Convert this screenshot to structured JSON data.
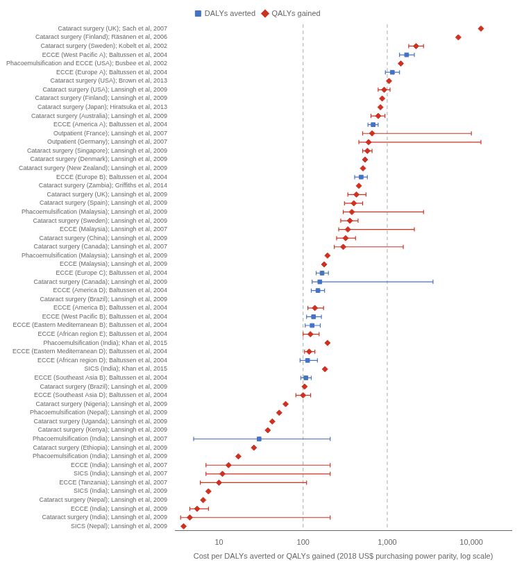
{
  "chart_data": {
    "type": "scatter",
    "orientation": "horizontal",
    "xlabel": "Cost per DALYs averted or QALYs gained (2018 US$ purchasing power parity, log scale)",
    "categories": [
      "Cataract surgery (UK); Sach et al, 2007",
      "Cataract surgery (Finland); Räsänen et al, 2006",
      "Cataract surgery (Sweden); Kobelt et al, 2002",
      "ECCE (West Pacific A); Baltussen et al, 2004",
      "Phacoemulsification and ECCE (USA); Busbee et al, 2002",
      "ECCE (Europe A); Baltussen et al, 2004",
      "Cataract surgery (USA); Brown et al, 2013",
      "Cataract surgery (USA); Lansingh et al, 2009",
      "Cataract surgery (Finland); Lansingh et al, 2009",
      "Cataract surgery (Japan); Hiratsuka et al, 2013",
      "Cataract surgery (Australia); Lansingh et al, 2009",
      "ECCE (America A); Baltussen et al, 2004",
      "Outpatient (France); Lansingh et al, 2007",
      "Outpatient (Germany); Lansingh et al, 2007",
      "Cataract surgery (Singapore); Lansingh et al, 2009",
      "Cataract surgery (Denmark); Lansingh et al, 2009",
      "Cataract surgery (New Zealand); Lansingh et al, 2009",
      "ECCE (Europe B); Baltussen et al, 2004",
      "Cataract surgery (Zambia); Griffiths et al, 2014",
      "Cataract surgery (UK); Lansingh et al, 2009",
      "Cataract surgery (Spain); Lansingh et al, 2009",
      "Phacoemulsification (Malaysia); Lansingh et al, 2009",
      "Cataract surgery (Sweden); Lansingh et al, 2009",
      "ECCE (Malaysia); Lansingh et al, 2007",
      "Cataract surgery (China); Lansingh et al, 2009",
      "Cataract surgery (Canada); Lansingh et al, 2007",
      "Phacoemulsification (Malaysia); Lansingh et al, 2009",
      "ECCE (Malaysia); Lansingh et al, 2009",
      "ECCE (Europe C); Baltussen et al, 2004",
      "Cataract surgery (Canada); Lansingh et al, 2009",
      "ECCE (America D); Baltussen et al, 2004",
      "Cataract surgery (Brazil); Lansingh et al, 2009",
      "ECCE (America B); Baltussen et al, 2004",
      "ECCE (West Pacific B); Baltussen et al, 2004",
      "ECCE (Eastern Mediterranean B); Baltussen et al, 2004",
      "ECCE (African region E); Baltussen et al, 2004",
      "Phacoemulsification (India); Khan et al, 2015",
      "ECCE (Eastern Mediterranean D); Baltussen et al, 2004",
      "ECCE (African region D); Baltussen et al, 2004",
      "SICS (India); Khan et al, 2015",
      "ECCE (Southeast Asia B); Baltussen et al, 2004",
      "Cataract surgery (Brazil); Lansingh et al, 2009",
      "ECCE (Southeast Asia D); Baltussen et al, 2004",
      "Cataract surgery (Nigeria); Lansingh et al, 2009",
      "Phacoemulsification (Nepal); Lansingh et al, 2009",
      "Cataract surgery (Uganda); Lansingh et al, 2009",
      "Cataract surgery (Kenya); Lansingh et al, 2009",
      "Phacoemulsification (India); Lansingh et al, 2007",
      "Cataract surgery (Ethiopia); Lansingh et al, 2009",
      "Phacoemulsification (India); Lansingh et al, 2009",
      "ECCE (India); Lansingh et al, 2007",
      "SICS (India); Lansingh et al, 2007",
      "ECCE (Tanzania); Lansingh et al, 2007",
      "SICS (India); Lansingh et al, 2009",
      "Cataract surgery (Nepal); Lansingh et al, 2009",
      "ECCE (India); Lansingh et al, 2009",
      "Cataract surgery (India); Lansingh et al, 2009",
      "SICS (Nepal); Lansingh et al, 2009"
    ],
    "series": [
      {
        "name": "DALYs averted",
        "color": "#4472c4",
        "marker": "square",
        "values": [
          null,
          null,
          null,
          1700,
          null,
          1150,
          null,
          null,
          null,
          null,
          null,
          680,
          null,
          null,
          null,
          null,
          null,
          490,
          null,
          null,
          null,
          null,
          null,
          null,
          null,
          null,
          null,
          null,
          168,
          158,
          150,
          null,
          null,
          133,
          128,
          null,
          null,
          null,
          113,
          null,
          108,
          null,
          null,
          null,
          null,
          null,
          null,
          30,
          null,
          null,
          null,
          null,
          null,
          null,
          null,
          null,
          null,
          null
        ],
        "lo": [
          null,
          null,
          null,
          1400,
          null,
          950,
          null,
          null,
          null,
          null,
          null,
          590,
          null,
          null,
          null,
          null,
          null,
          410,
          null,
          null,
          null,
          null,
          null,
          null,
          null,
          null,
          null,
          null,
          143,
          128,
          125,
          null,
          null,
          110,
          106,
          null,
          null,
          null,
          92,
          null,
          94,
          null,
          null,
          null,
          null,
          null,
          null,
          5,
          null,
          null,
          null,
          null,
          null,
          null,
          null,
          null,
          null,
          null
        ],
        "hi": [
          null,
          null,
          null,
          2100,
          null,
          1400,
          null,
          null,
          null,
          null,
          null,
          780,
          null,
          null,
          null,
          null,
          null,
          580,
          null,
          null,
          null,
          null,
          null,
          null,
          null,
          null,
          null,
          null,
          200,
          3500,
          180,
          null,
          null,
          165,
          160,
          null,
          null,
          null,
          148,
          null,
          125,
          null,
          null,
          null,
          null,
          null,
          null,
          210,
          null,
          null,
          null,
          null,
          null,
          null,
          null,
          null,
          null,
          null
        ]
      },
      {
        "name": "QALYs gained",
        "color": "#d03020",
        "marker": "diamond",
        "values": [
          13000,
          7000,
          2200,
          null,
          1450,
          null,
          1050,
          920,
          870,
          830,
          780,
          null,
          660,
          600,
          580,
          545,
          515,
          null,
          460,
          430,
          400,
          380,
          360,
          340,
          320,
          300,
          195,
          178,
          null,
          null,
          null,
          null,
          138,
          null,
          null,
          122,
          195,
          118,
          null,
          182,
          null,
          104,
          100,
          62,
          52,
          43,
          38,
          null,
          26,
          17,
          13,
          11,
          10,
          7.5,
          6.5,
          5.5,
          4.5,
          3.8
        ],
        "lo": [
          null,
          null,
          1800,
          null,
          null,
          null,
          null,
          780,
          null,
          null,
          640,
          null,
          510,
          460,
          510,
          null,
          null,
          null,
          null,
          340,
          310,
          300,
          280,
          265,
          250,
          235,
          null,
          null,
          null,
          null,
          null,
          null,
          114,
          null,
          null,
          100,
          null,
          104,
          null,
          null,
          null,
          null,
          82,
          null,
          null,
          null,
          null,
          null,
          null,
          null,
          7,
          7,
          6,
          null,
          null,
          4.5,
          3.5,
          null
        ],
        "hi": [
          null,
          null,
          2700,
          null,
          null,
          null,
          null,
          1080,
          null,
          null,
          940,
          null,
          10000,
          13000,
          660,
          null,
          null,
          null,
          null,
          560,
          510,
          2700,
          450,
          2100,
          420,
          1550,
          null,
          null,
          null,
          null,
          null,
          null,
          175,
          null,
          null,
          155,
          null,
          138,
          null,
          null,
          null,
          null,
          123,
          null,
          null,
          null,
          null,
          null,
          null,
          null,
          210,
          210,
          110,
          null,
          null,
          7.5,
          210,
          null
        ]
      }
    ],
    "log": "x",
    "xlim": [
      3,
      30000
    ],
    "xticks": [
      10,
      100,
      {
        "value": 1000,
        "label": "1,000"
      },
      {
        "value": 10000,
        "label": "10,000"
      }
    ],
    "grid": false,
    "vlines": [
      100,
      1000
    ],
    "legend": "top"
  }
}
